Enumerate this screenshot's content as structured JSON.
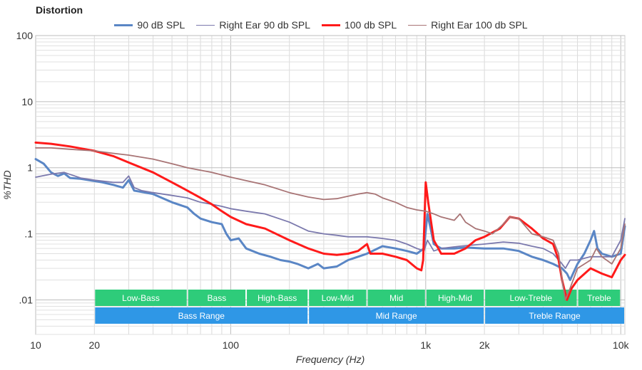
{
  "chart_data": {
    "type": "line",
    "title": "Distortion",
    "xlabel": "Frequency (Hz)",
    "ylabel": "%THD",
    "x_scale": "log",
    "y_scale": "log",
    "xlim": [
      10,
      10500
    ],
    "ylim": [
      0.003,
      100
    ],
    "grid": true,
    "legend_position": "top-center",
    "x_ticks": [
      {
        "value": 10,
        "label": "10"
      },
      {
        "value": 20,
        "label": "20"
      },
      {
        "value": 100,
        "label": "100"
      },
      {
        "value": 1000,
        "label": "1k"
      },
      {
        "value": 2000,
        "label": "2k"
      },
      {
        "value": 10000,
        "label": "10k"
      }
    ],
    "y_ticks": [
      {
        "value": 100,
        "label": "100"
      },
      {
        "value": 10,
        "label": "10"
      },
      {
        "value": 1,
        "label": "1"
      },
      {
        "value": 0.1,
        "label": ".1"
      },
      {
        "value": 0.01,
        "label": ".01"
      }
    ],
    "series": [
      {
        "name": "90 dB SPL",
        "color": "#5a86c5",
        "width": 3,
        "points": [
          [
            10,
            1.35
          ],
          [
            11,
            1.15
          ],
          [
            12,
            0.85
          ],
          [
            13,
            0.75
          ],
          [
            14,
            0.82
          ],
          [
            15,
            0.7
          ],
          [
            17,
            0.68
          ],
          [
            20,
            0.63
          ],
          [
            22,
            0.6
          ],
          [
            25,
            0.55
          ],
          [
            28,
            0.5
          ],
          [
            30,
            0.65
          ],
          [
            32,
            0.45
          ],
          [
            35,
            0.43
          ],
          [
            40,
            0.4
          ],
          [
            50,
            0.3
          ],
          [
            60,
            0.25
          ],
          [
            65,
            0.2
          ],
          [
            70,
            0.17
          ],
          [
            80,
            0.15
          ],
          [
            90,
            0.14
          ],
          [
            95,
            0.1
          ],
          [
            100,
            0.08
          ],
          [
            110,
            0.085
          ],
          [
            120,
            0.06
          ],
          [
            140,
            0.05
          ],
          [
            160,
            0.045
          ],
          [
            180,
            0.04
          ],
          [
            200,
            0.038
          ],
          [
            220,
            0.035
          ],
          [
            250,
            0.03
          ],
          [
            280,
            0.035
          ],
          [
            300,
            0.03
          ],
          [
            350,
            0.032
          ],
          [
            400,
            0.04
          ],
          [
            450,
            0.045
          ],
          [
            500,
            0.05
          ],
          [
            600,
            0.065
          ],
          [
            700,
            0.06
          ],
          [
            800,
            0.055
          ],
          [
            900,
            0.05
          ],
          [
            980,
            0.06
          ],
          [
            1020,
            0.2
          ],
          [
            1060,
            0.12
          ],
          [
            1100,
            0.07
          ],
          [
            1200,
            0.06
          ],
          [
            1400,
            0.06
          ],
          [
            1600,
            0.062
          ],
          [
            2000,
            0.06
          ],
          [
            2500,
            0.06
          ],
          [
            3000,
            0.055
          ],
          [
            3500,
            0.045
          ],
          [
            4000,
            0.04
          ],
          [
            4500,
            0.035
          ],
          [
            5000,
            0.03
          ],
          [
            5300,
            0.025
          ],
          [
            5500,
            0.02
          ],
          [
            6000,
            0.035
          ],
          [
            6500,
            0.05
          ],
          [
            7000,
            0.08
          ],
          [
            7300,
            0.11
          ],
          [
            7600,
            0.06
          ],
          [
            8000,
            0.05
          ],
          [
            9000,
            0.045
          ],
          [
            10000,
            0.05
          ],
          [
            10500,
            0.13
          ]
        ]
      },
      {
        "name": "Right Ear 90 db SPL",
        "color": "#7b79ad",
        "width": 1.8,
        "points": [
          [
            10,
            0.72
          ],
          [
            12,
            0.8
          ],
          [
            14,
            0.85
          ],
          [
            17,
            0.7
          ],
          [
            20,
            0.65
          ],
          [
            25,
            0.6
          ],
          [
            28,
            0.6
          ],
          [
            30,
            0.75
          ],
          [
            32,
            0.5
          ],
          [
            35,
            0.45
          ],
          [
            40,
            0.42
          ],
          [
            50,
            0.38
          ],
          [
            60,
            0.35
          ],
          [
            70,
            0.3
          ],
          [
            80,
            0.28
          ],
          [
            90,
            0.26
          ],
          [
            100,
            0.24
          ],
          [
            120,
            0.22
          ],
          [
            150,
            0.2
          ],
          [
            200,
            0.15
          ],
          [
            250,
            0.11
          ],
          [
            300,
            0.1
          ],
          [
            350,
            0.095
          ],
          [
            400,
            0.09
          ],
          [
            500,
            0.09
          ],
          [
            600,
            0.085
          ],
          [
            700,
            0.08
          ],
          [
            800,
            0.07
          ],
          [
            900,
            0.06
          ],
          [
            980,
            0.055
          ],
          [
            1020,
            0.08
          ],
          [
            1100,
            0.055
          ],
          [
            1200,
            0.06
          ],
          [
            1500,
            0.065
          ],
          [
            2000,
            0.07
          ],
          [
            2500,
            0.075
          ],
          [
            3000,
            0.072
          ],
          [
            3500,
            0.065
          ],
          [
            4000,
            0.06
          ],
          [
            4500,
            0.05
          ],
          [
            5000,
            0.035
          ],
          [
            5200,
            0.03
          ],
          [
            5500,
            0.04
          ],
          [
            6000,
            0.04
          ],
          [
            7000,
            0.045
          ],
          [
            8000,
            0.045
          ],
          [
            9000,
            0.045
          ],
          [
            10000,
            0.08
          ],
          [
            10500,
            0.17
          ]
        ]
      },
      {
        "name": "100 db SPL",
        "color": "#ff1a1a",
        "width": 3,
        "points": [
          [
            10,
            2.4
          ],
          [
            12,
            2.3
          ],
          [
            15,
            2.1
          ],
          [
            20,
            1.8
          ],
          [
            25,
            1.5
          ],
          [
            30,
            1.2
          ],
          [
            40,
            0.85
          ],
          [
            50,
            0.6
          ],
          [
            60,
            0.45
          ],
          [
            70,
            0.35
          ],
          [
            80,
            0.28
          ],
          [
            90,
            0.22
          ],
          [
            100,
            0.18
          ],
          [
            120,
            0.14
          ],
          [
            150,
            0.12
          ],
          [
            200,
            0.08
          ],
          [
            250,
            0.06
          ],
          [
            300,
            0.05
          ],
          [
            350,
            0.048
          ],
          [
            400,
            0.05
          ],
          [
            450,
            0.055
          ],
          [
            500,
            0.07
          ],
          [
            520,
            0.05
          ],
          [
            600,
            0.05
          ],
          [
            700,
            0.045
          ],
          [
            800,
            0.04
          ],
          [
            900,
            0.03
          ],
          [
            950,
            0.028
          ],
          [
            970,
            0.04
          ],
          [
            1000,
            0.6
          ],
          [
            1030,
            0.3
          ],
          [
            1100,
            0.08
          ],
          [
            1200,
            0.05
          ],
          [
            1400,
            0.05
          ],
          [
            1600,
            0.06
          ],
          [
            1800,
            0.08
          ],
          [
            2000,
            0.09
          ],
          [
            2400,
            0.12
          ],
          [
            2700,
            0.18
          ],
          [
            3000,
            0.17
          ],
          [
            3500,
            0.12
          ],
          [
            4000,
            0.085
          ],
          [
            4500,
            0.07
          ],
          [
            4800,
            0.04
          ],
          [
            5000,
            0.02
          ],
          [
            5300,
            0.01
          ],
          [
            5600,
            0.015
          ],
          [
            6000,
            0.02
          ],
          [
            7000,
            0.03
          ],
          [
            8000,
            0.025
          ],
          [
            9000,
            0.022
          ],
          [
            10000,
            0.04
          ],
          [
            10500,
            0.048
          ]
        ]
      },
      {
        "name": "Right Ear 100 db SPL",
        "color": "#a87475",
        "width": 1.8,
        "points": [
          [
            10,
            2
          ],
          [
            12,
            2
          ],
          [
            15,
            1.9
          ],
          [
            20,
            1.8
          ],
          [
            25,
            1.65
          ],
          [
            30,
            1.55
          ],
          [
            40,
            1.35
          ],
          [
            50,
            1.15
          ],
          [
            60,
            1
          ],
          [
            80,
            0.85
          ],
          [
            100,
            0.72
          ],
          [
            150,
            0.55
          ],
          [
            200,
            0.42
          ],
          [
            250,
            0.36
          ],
          [
            300,
            0.33
          ],
          [
            350,
            0.34
          ],
          [
            400,
            0.37
          ],
          [
            450,
            0.4
          ],
          [
            500,
            0.42
          ],
          [
            550,
            0.4
          ],
          [
            600,
            0.35
          ],
          [
            700,
            0.3
          ],
          [
            800,
            0.25
          ],
          [
            900,
            0.23
          ],
          [
            1000,
            0.22
          ],
          [
            1100,
            0.2
          ],
          [
            1200,
            0.18
          ],
          [
            1400,
            0.16
          ],
          [
            1500,
            0.2
          ],
          [
            1600,
            0.15
          ],
          [
            1800,
            0.12
          ],
          [
            2000,
            0.11
          ],
          [
            2200,
            0.1
          ],
          [
            2500,
            0.14
          ],
          [
            2700,
            0.18
          ],
          [
            3000,
            0.17
          ],
          [
            3500,
            0.1
          ],
          [
            4000,
            0.09
          ],
          [
            4500,
            0.08
          ],
          [
            4800,
            0.05
          ],
          [
            5000,
            0.02
          ],
          [
            5200,
            0.01
          ],
          [
            5500,
            0.015
          ],
          [
            6000,
            0.03
          ],
          [
            7000,
            0.04
          ],
          [
            7500,
            0.06
          ],
          [
            8000,
            0.045
          ],
          [
            9000,
            0.035
          ],
          [
            10000,
            0.06
          ],
          [
            10500,
            0.14
          ]
        ]
      }
    ],
    "bands_top": [
      {
        "label": "Low-Bass",
        "from": 20,
        "to": 60
      },
      {
        "label": "Bass",
        "from": 60,
        "to": 120
      },
      {
        "label": "High-Bass",
        "from": 120,
        "to": 250
      },
      {
        "label": "Low-Mid",
        "from": 250,
        "to": 500
      },
      {
        "label": "Mid",
        "from": 500,
        "to": 1000
      },
      {
        "label": "High-Mid",
        "from": 1000,
        "to": 2000
      },
      {
        "label": "Low-Treble",
        "from": 2000,
        "to": 6000
      },
      {
        "label": "Treble",
        "from": 6000,
        "to": 10000
      }
    ],
    "bands_bottom": [
      {
        "label": "Bass Range",
        "from": 20,
        "to": 250
      },
      {
        "label": "Mid Range",
        "from": 250,
        "to": 2000
      },
      {
        "label": "Treble Range",
        "from": 2000,
        "to": 10500
      }
    ],
    "band_colors": {
      "top": "#2ecc7a",
      "bottom": "#2f97e6"
    }
  }
}
